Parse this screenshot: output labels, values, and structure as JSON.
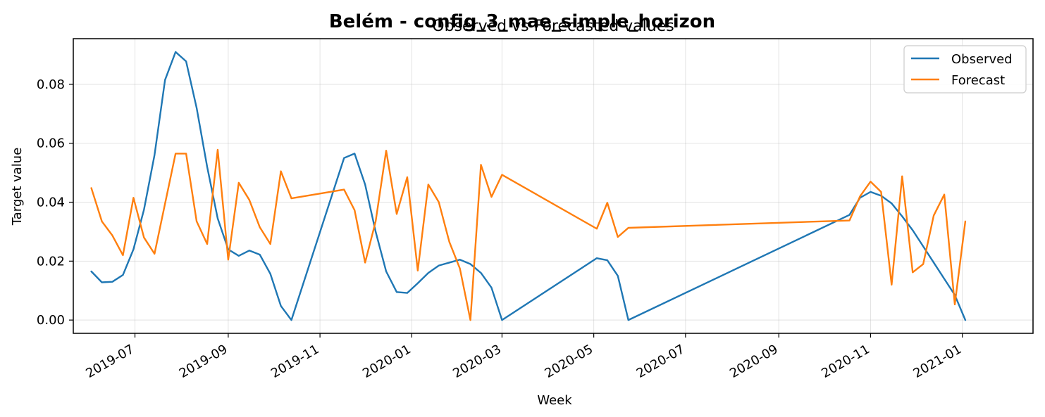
{
  "chart_data": {
    "type": "line",
    "suptitle": "Belém - config_3_mae_simple_horizon",
    "title": "Observed vs Forecasted values",
    "xlabel": "Week",
    "ylabel": "Target value",
    "grid": true,
    "legend_position": "top-right",
    "x_ticks": [
      "2019-07",
      "2019-09",
      "2019-11",
      "2020-01",
      "2020-03",
      "2020-05",
      "2020-07",
      "2020-09",
      "2020-11",
      "2021-01"
    ],
    "x_tick_dates": [
      "2019-07-01",
      "2019-09-01",
      "2019-11-01",
      "2020-01-01",
      "2020-03-01",
      "2020-05-01",
      "2020-07-01",
      "2020-09-01",
      "2020-11-01",
      "2021-01-01"
    ],
    "y_ticks": [
      "0.00",
      "0.02",
      "0.04",
      "0.06",
      "0.08"
    ],
    "y_tick_values": [
      0.0,
      0.02,
      0.04,
      0.06,
      0.08
    ],
    "xlim": [
      "2019-05-21",
      "2021-02-17"
    ],
    "ylim": [
      -0.0045,
      0.0955
    ],
    "x": [
      "2019-06-02",
      "2019-06-09",
      "2019-06-16",
      "2019-06-23",
      "2019-06-30",
      "2019-07-07",
      "2019-07-14",
      "2019-07-21",
      "2019-07-28",
      "2019-08-04",
      "2019-08-11",
      "2019-08-18",
      "2019-08-25",
      "2019-09-01",
      "2019-09-08",
      "2019-09-15",
      "2019-09-22",
      "2019-09-29",
      "2019-10-06",
      "2019-10-13",
      "2019-11-17",
      "2019-11-24",
      "2019-12-01",
      "2019-12-08",
      "2019-12-15",
      "2019-12-22",
      "2019-12-29",
      "2020-01-05",
      "2020-01-12",
      "2020-01-19",
      "2020-01-26",
      "2020-02-02",
      "2020-02-09",
      "2020-02-16",
      "2020-02-23",
      "2020-03-01",
      "2020-05-03",
      "2020-05-10",
      "2020-05-17",
      "2020-05-24",
      "2020-10-18",
      "2020-10-25",
      "2020-11-01",
      "2020-11-08",
      "2020-11-15",
      "2020-11-22",
      "2020-11-29",
      "2020-12-06",
      "2020-12-13",
      "2020-12-20",
      "2020-12-27",
      "2021-01-03"
    ],
    "series": [
      {
        "name": "Observed",
        "color": "#1f77b4",
        "values": [
          0.0165,
          0.0128,
          0.013,
          0.0153,
          0.024,
          0.0375,
          0.056,
          0.0815,
          0.091,
          0.0878,
          0.072,
          0.052,
          0.0345,
          0.024,
          0.0218,
          0.0236,
          0.0222,
          0.0157,
          0.0048,
          0.0,
          0.055,
          0.0565,
          0.046,
          0.03,
          0.0165,
          0.0095,
          0.0092,
          0.0125,
          0.016,
          0.0185,
          0.0195,
          0.0205,
          0.019,
          0.016,
          0.011,
          0.0,
          0.021,
          0.0203,
          0.015,
          0.0,
          0.0357,
          0.0415,
          0.0435,
          0.0422,
          0.0396,
          0.0352,
          0.0305,
          0.025,
          0.0195,
          0.014,
          0.0085,
          0.0
        ]
      },
      {
        "name": "Forecast",
        "color": "#ff7f0e",
        "values": [
          0.0448,
          0.0335,
          0.0287,
          0.022,
          0.0415,
          0.028,
          0.0225,
          0.0395,
          0.0565,
          0.0565,
          0.0335,
          0.0258,
          0.0578,
          0.0205,
          0.0466,
          0.0408,
          0.0315,
          0.0258,
          0.0505,
          0.0413,
          0.0443,
          0.0373,
          0.0195,
          0.0335,
          0.0575,
          0.036,
          0.0485,
          0.0168,
          0.046,
          0.04,
          0.0265,
          0.0175,
          0.0,
          0.0527,
          0.0418,
          0.0493,
          0.031,
          0.0398,
          0.0282,
          0.0313,
          0.0338,
          0.042,
          0.047,
          0.0435,
          0.012,
          0.0488,
          0.0162,
          0.019,
          0.0355,
          0.0426,
          0.0053,
          0.0335
        ]
      }
    ]
  }
}
